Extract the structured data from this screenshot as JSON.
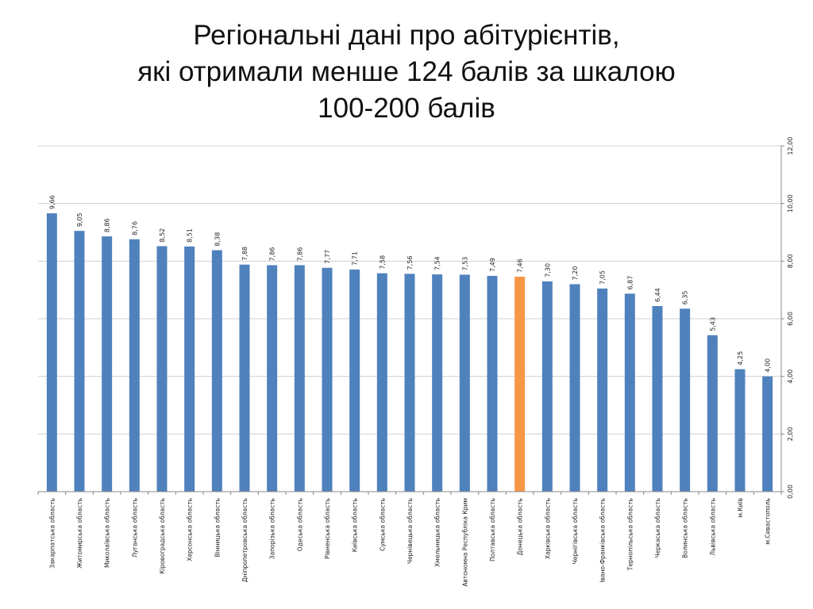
{
  "slide": {
    "title_lines": [
      "Регіональні дані про абітурієнтів,",
      "які отримали менше 124 балів за шкалою",
      "100-200 балів"
    ]
  },
  "chart_data": {
    "type": "bar",
    "title": "",
    "xlabel": "",
    "ylabel": "",
    "ylim": [
      0,
      12
    ],
    "y_ticks": [
      "0,00",
      "2,00",
      "4,00",
      "6,00",
      "8,00",
      "10,00",
      "12,00"
    ],
    "y_axis_side": "right",
    "grid": true,
    "legend": "none",
    "bar_color": "#4f81bd",
    "highlight_color": "#f79646",
    "highlight_index": 17,
    "categories": [
      "Закарпатська область",
      "Житомирська область",
      "Миколаївська область",
      "Луганська область",
      "Кіровоградська область",
      "Херсонська область",
      "Вінницька область",
      "Дніпропетровська область",
      "Запорізька область",
      "Одеська область",
      "Рівненська область",
      "Київська область",
      "Сумська область",
      "Чернівецька область",
      "Хмельницька область",
      "Автономна Республіка Крим",
      "Полтавська область",
      "Донецька область",
      "Харківська область",
      "Чернігівська область",
      "Івано-Франківська область",
      "Тернопільська область",
      "Черкаська область",
      "Волинська область",
      "Львівська область",
      "м.Київ",
      "м.Севастополь"
    ],
    "values": [
      9.66,
      9.05,
      8.86,
      8.76,
      8.52,
      8.51,
      8.38,
      7.88,
      7.86,
      7.86,
      7.77,
      7.71,
      7.58,
      7.56,
      7.54,
      7.53,
      7.49,
      7.46,
      7.3,
      7.2,
      7.05,
      6.87,
      6.44,
      6.35,
      5.43,
      4.25,
      4.0
    ],
    "value_labels": [
      "9,66",
      "9,05",
      "8,86",
      "8,76",
      "8,52",
      "8,51",
      "8,38",
      "7,88",
      "7,86",
      "7,86",
      "7,77",
      "7,71",
      "7,58",
      "7,56",
      "7,54",
      "7,53",
      "7,49",
      "7,46",
      "7,30",
      "7,20",
      "7,05",
      "6,87",
      "6,44",
      "6,35",
      "5,43",
      "4,25",
      "4,00"
    ]
  }
}
